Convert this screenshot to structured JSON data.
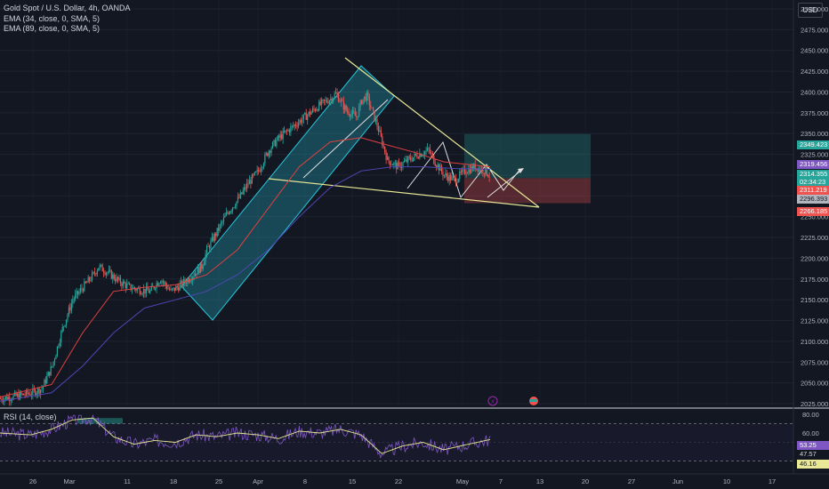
{
  "header": {
    "symbol_line": "Gold Spot / U.S. Dollar, 4h, OANDA",
    "ema1": "EMA (34, close, 0, SMA, 5)",
    "ema2": "EMA (89, close, 0, SMA, 5)",
    "rsi_label": "RSI (14, close)",
    "currency": "USD"
  },
  "price_tags": {
    "target": "2349.423",
    "current_upper": "2319.456",
    "current": "2314.355",
    "countdown": "02:34:23",
    "entry": "2296.393",
    "current_lower": "2311.219",
    "stop": "2266.185"
  },
  "rsi_tags": {
    "val1": "53.25",
    "val2": "47.57",
    "val3": "46.16"
  },
  "colors": {
    "background": "#131722",
    "bull": "#26a69a",
    "bear": "#ef5350",
    "ema34": "#e0403f",
    "ema89": "#4f46b5",
    "trendline": "#e8e896",
    "channel": "#26c6da",
    "rsi": "#7e57c2",
    "rsi_ma": "#e8e896"
  },
  "chart_data": {
    "type": "candlestick",
    "title": "Gold Spot / U.S. Dollar, 4h, OANDA",
    "y_range": [
      2025,
      2500
    ],
    "y_ticks": [
      2500,
      2475,
      2450,
      2425,
      2400,
      2375,
      2350,
      2325,
      2300,
      2275,
      2250,
      2225,
      2200,
      2175,
      2150,
      2125,
      2100,
      2075,
      2050,
      2025
    ],
    "x_ticks": [
      "26",
      "Mar",
      "11",
      "18",
      "25",
      "Apr",
      "8",
      "15",
      "22",
      "May",
      "7",
      "13",
      "20",
      "27",
      "Jun",
      "10",
      "17"
    ],
    "price_path": [
      [
        0,
        2031
      ],
      [
        2,
        2033
      ],
      [
        4,
        2035
      ],
      [
        6,
        2038
      ],
      [
        8,
        2043
      ],
      [
        10,
        2070
      ],
      [
        12,
        2115
      ],
      [
        14,
        2150
      ],
      [
        16,
        2165
      ],
      [
        18,
        2180
      ],
      [
        19,
        2190
      ],
      [
        21,
        2182
      ],
      [
        23,
        2172
      ],
      [
        25,
        2165
      ],
      [
        27,
        2162
      ],
      [
        29,
        2160
      ],
      [
        30,
        2168
      ],
      [
        31,
        2175
      ],
      [
        33,
        2160
      ],
      [
        35,
        2168
      ],
      [
        37,
        2178
      ],
      [
        39,
        2190
      ],
      [
        40,
        2210
      ],
      [
        42,
        2232
      ],
      [
        44,
        2255
      ],
      [
        46,
        2270
      ],
      [
        48,
        2290
      ],
      [
        50,
        2305
      ],
      [
        52,
        2330
      ],
      [
        54,
        2345
      ],
      [
        56,
        2355
      ],
      [
        58,
        2365
      ],
      [
        60,
        2375
      ],
      [
        62,
        2385
      ],
      [
        64,
        2392
      ],
      [
        65,
        2398
      ],
      [
        67,
        2378
      ],
      [
        69,
        2370
      ],
      [
        70,
        2390
      ],
      [
        71,
        2395
      ],
      [
        73,
        2360
      ],
      [
        75,
        2318
      ],
      [
        77,
        2310
      ],
      [
        79,
        2318
      ],
      [
        81,
        2325
      ],
      [
        83,
        2330
      ],
      [
        84,
        2318
      ],
      [
        86,
        2300
      ],
      [
        88,
        2294
      ],
      [
        90,
        2305
      ],
      [
        92,
        2310
      ],
      [
        94,
        2305
      ],
      [
        95,
        2298
      ]
    ],
    "ema34": [
      [
        0,
        2033
      ],
      [
        10,
        2048
      ],
      [
        16,
        2110
      ],
      [
        22,
        2160
      ],
      [
        28,
        2165
      ],
      [
        34,
        2168
      ],
      [
        40,
        2180
      ],
      [
        46,
        2210
      ],
      [
        52,
        2260
      ],
      [
        58,
        2310
      ],
      [
        64,
        2340
      ],
      [
        70,
        2345
      ],
      [
        74,
        2338
      ],
      [
        80,
        2328
      ],
      [
        86,
        2316
      ],
      [
        92,
        2312
      ],
      [
        95,
        2310
      ]
    ],
    "ema89": [
      [
        0,
        2028
      ],
      [
        10,
        2038
      ],
      [
        16,
        2070
      ],
      [
        22,
        2110
      ],
      [
        28,
        2140
      ],
      [
        34,
        2150
      ],
      [
        40,
        2160
      ],
      [
        46,
        2180
      ],
      [
        52,
        2210
      ],
      [
        58,
        2250
      ],
      [
        64,
        2285
      ],
      [
        70,
        2305
      ],
      [
        76,
        2310
      ],
      [
        82,
        2310
      ],
      [
        88,
        2308
      ],
      [
        95,
        2307
      ]
    ],
    "rsi": {
      "range": [
        20,
        80
      ],
      "levels": [
        70,
        30
      ],
      "ticks": [
        80,
        60
      ],
      "values": [
        [
          0,
          60
        ],
        [
          6,
          58
        ],
        [
          10,
          64
        ],
        [
          14,
          74
        ],
        [
          18,
          76
        ],
        [
          22,
          56
        ],
        [
          26,
          48
        ],
        [
          30,
          52
        ],
        [
          34,
          50
        ],
        [
          38,
          58
        ],
        [
          42,
          56
        ],
        [
          46,
          60
        ],
        [
          50,
          58
        ],
        [
          54,
          54
        ],
        [
          58,
          62
        ],
        [
          62,
          60
        ],
        [
          66,
          64
        ],
        [
          70,
          58
        ],
        [
          74,
          38
        ],
        [
          78,
          46
        ],
        [
          82,
          50
        ],
        [
          86,
          42
        ],
        [
          90,
          47
        ],
        [
          95,
          53
        ]
      ]
    }
  }
}
